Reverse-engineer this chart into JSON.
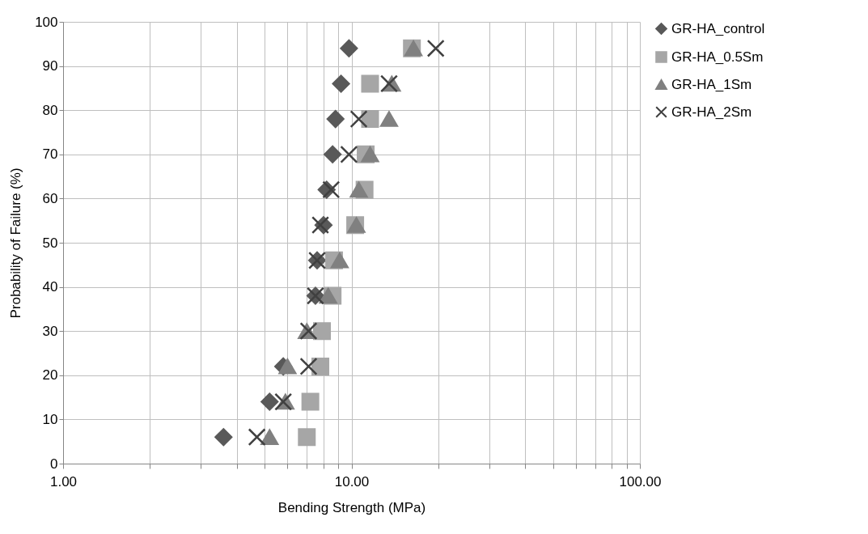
{
  "chart_data": {
    "type": "scatter",
    "xlabel": "Bending Strength (MPa)",
    "ylabel": "Probability of Failure (%)",
    "log": "x",
    "grid": true,
    "legend": "right",
    "xlim": [
      1,
      100
    ],
    "xticks": [
      {
        "value": 1,
        "label": "1.00"
      },
      {
        "value": 2,
        "label": null
      },
      {
        "value": 3,
        "label": null
      },
      {
        "value": 4,
        "label": null
      },
      {
        "value": 5,
        "label": null
      },
      {
        "value": 6,
        "label": null
      },
      {
        "value": 7,
        "label": null
      },
      {
        "value": 8,
        "label": null
      },
      {
        "value": 9,
        "label": null
      },
      {
        "value": 10,
        "label": "10.00"
      },
      {
        "value": 20,
        "label": null
      },
      {
        "value": 30,
        "label": null
      },
      {
        "value": 40,
        "label": null
      },
      {
        "value": 50,
        "label": null
      },
      {
        "value": 60,
        "label": null
      },
      {
        "value": 70,
        "label": null
      },
      {
        "value": 80,
        "label": null
      },
      {
        "value": 90,
        "label": null
      },
      {
        "value": 100,
        "label": "100.00"
      }
    ],
    "ylim": [
      0,
      100
    ],
    "yticks": [
      0,
      10,
      20,
      30,
      40,
      50,
      60,
      70,
      80,
      90,
      100
    ],
    "series": [
      {
        "name": "GR-HA_control",
        "color": "#595959",
        "marker": "diamond",
        "x": [
          3.6,
          5.2,
          5.8,
          null,
          7.5,
          7.6,
          8.0,
          8.2,
          8.6,
          8.8,
          9.2,
          9.8
        ],
        "values": [
          6,
          14,
          22,
          null,
          38,
          46,
          54,
          62,
          70,
          78,
          86,
          94
        ]
      },
      {
        "name": "GR-HA_0.5Sm",
        "color": "#a6a6a6",
        "marker": "square",
        "x": [
          7.0,
          7.2,
          7.8,
          7.9,
          8.6,
          8.7,
          10.3,
          11.1,
          11.2,
          11.6,
          11.6,
          16.2
        ],
        "values": [
          6,
          14,
          22,
          30,
          38,
          46,
          54,
          62,
          70,
          78,
          86,
          94
        ]
      },
      {
        "name": "GR-HA_1Sm",
        "color": "#808080",
        "marker": "triangle",
        "x": [
          5.2,
          5.9,
          6.0,
          7.0,
          8.3,
          9.1,
          10.4,
          10.6,
          11.6,
          13.5,
          13.8,
          16.4
        ],
        "values": [
          6,
          14,
          22,
          30,
          38,
          46,
          54,
          62,
          70,
          78,
          86,
          94
        ]
      },
      {
        "name": "GR-HA_2Sm",
        "color": "#404040",
        "marker": "cross",
        "x": [
          4.7,
          5.8,
          7.1,
          7.1,
          7.5,
          7.6,
          7.8,
          8.5,
          9.8,
          10.6,
          13.5,
          19.6
        ],
        "values": [
          6,
          14,
          22,
          30,
          38,
          46,
          54,
          62,
          70,
          78,
          86,
          94
        ]
      }
    ]
  }
}
